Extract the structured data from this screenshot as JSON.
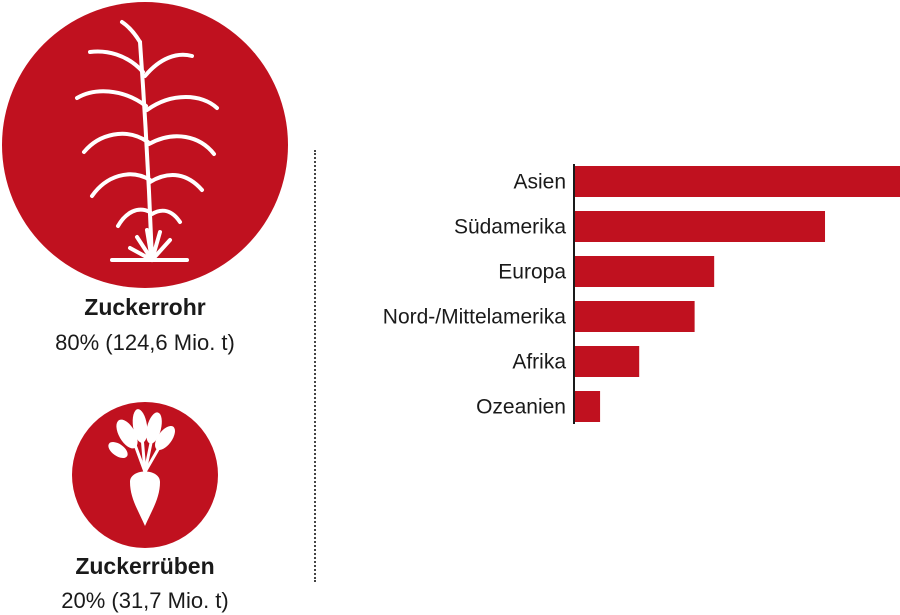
{
  "colors": {
    "accent": "#c0111f",
    "text": "#1a1a1a",
    "divider": "#444444"
  },
  "icons": {
    "sugarcane": "sugarcane-plant-icon",
    "sugarbeet": "sugar-beet-icon"
  },
  "sources": [
    {
      "id": "cane",
      "title": "Zuckerrohr",
      "subtitle": "80% (124,6 Mio. t)",
      "share": 80
    },
    {
      "id": "beet",
      "title": "Zuckerrüben",
      "subtitle": "20% (31,7 Mio. t)",
      "share": 20
    }
  ],
  "chart_data": {
    "type": "bar",
    "orientation": "horizontal",
    "categories": [
      "Asien",
      "Südamerika",
      "Europa",
      "Nord-/Mittelamerika",
      "Afrika",
      "Ozeanien"
    ],
    "values": [
      100,
      77,
      43,
      37,
      20,
      8
    ],
    "value_scale": "relative",
    "xlim": [
      0,
      100
    ],
    "grid": false,
    "color": "#c0111f"
  }
}
